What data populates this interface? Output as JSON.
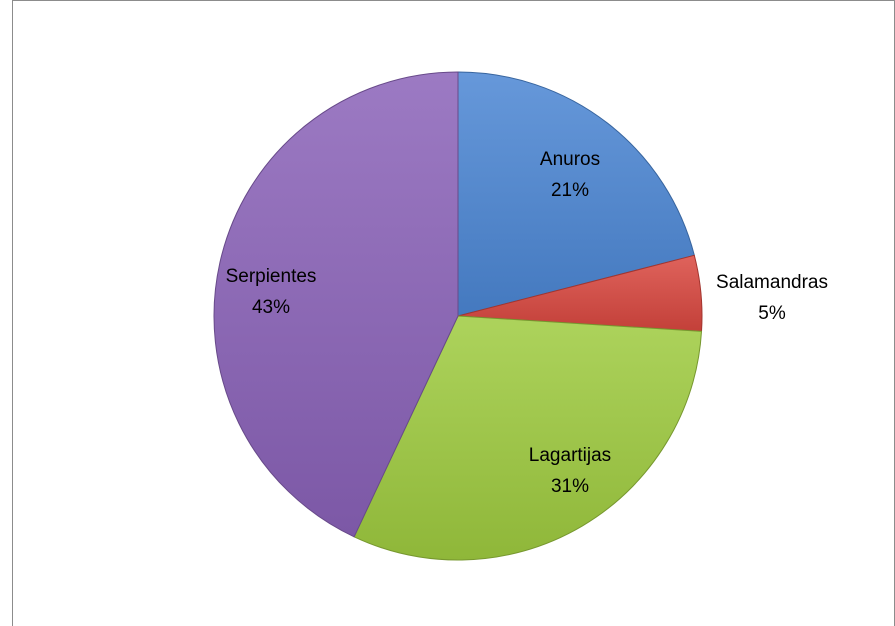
{
  "chart_data": {
    "type": "pie",
    "title": "",
    "start_angle_deg": 0,
    "direction": "clockwise",
    "legend": "none",
    "slices": [
      {
        "label": "Anuros",
        "value": 21,
        "display": "21%",
        "color": "#4b86d4"
      },
      {
        "label": "Salamandras",
        "value": 5,
        "display": "5%",
        "color": "#d9473f"
      },
      {
        "label": "Lagartijas",
        "value": 31,
        "display": "31%",
        "color": "#9fcb3f"
      },
      {
        "label": "Serpientes",
        "value": 43,
        "display": "43%",
        "color": "#8a62b8"
      }
    ]
  }
}
